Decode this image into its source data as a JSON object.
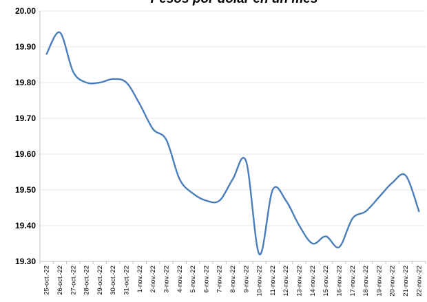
{
  "chart_data": {
    "type": "line",
    "title": "Pesos por dólar en un mes",
    "xlabel": "",
    "ylabel": "",
    "ylim": [
      19.3,
      20.0
    ],
    "yticks": [
      "19.30",
      "19.40",
      "19.50",
      "19.60",
      "19.70",
      "19.80",
      "19.90",
      "20.00"
    ],
    "grid": true,
    "legend": "none",
    "color": "#4a7ebb",
    "categories": [
      "25-oct.-22",
      "26-oct.-22",
      "27-oct.-22",
      "28-oct.-22",
      "29-oct.-22",
      "30-oct.-22",
      "31-oct.-22",
      "1-nov.-22",
      "2-nov.-22",
      "3-nov.-22",
      "4-nov.-22",
      "5-nov.-22",
      "6-nov.-22",
      "7-nov.-22",
      "8-nov.-22",
      "9-nov.-22",
      "10-nov.-22",
      "11-nov.-22",
      "12-nov.-22",
      "13-nov.-22",
      "14-nov.-22",
      "15-nov.-22",
      "16-nov.-22",
      "17-nov.-22",
      "18-nov.-22",
      "19-nov.-22",
      "20-nov.-22",
      "21-nov.-22",
      "22-nov.-22"
    ],
    "series": [
      {
        "values": [
          19.88,
          19.94,
          19.83,
          19.8,
          19.8,
          19.81,
          19.8,
          19.74,
          19.67,
          19.64,
          19.53,
          19.49,
          19.47,
          19.47,
          19.53,
          19.58,
          19.32,
          19.5,
          19.47,
          19.4,
          19.35,
          19.37,
          19.34,
          19.42,
          19.44,
          19.48,
          19.52,
          19.54,
          19.44
        ]
      }
    ]
  }
}
